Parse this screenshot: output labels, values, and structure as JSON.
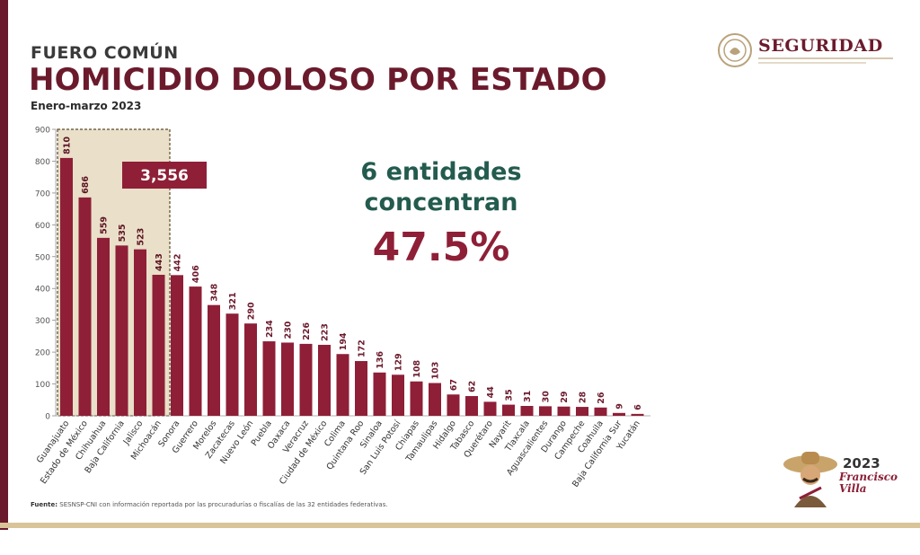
{
  "header": {
    "subtitle": "FUERO COMÚN",
    "title": "HOMICIDIO DOLOSO POR ESTADO",
    "period": "Enero-marzo 2023"
  },
  "brand": {
    "name": "SEGURIDAD"
  },
  "callout": {
    "line1": "6 entidades",
    "line2": "concentran",
    "percent": "47.5%",
    "total_label": "3,556"
  },
  "footer": {
    "label": "Fuente:",
    "text": "SESNSP-CNI con información reportada por las procuradurías o fiscalías de las 32 entidades federativas."
  },
  "logo": {
    "year": "2023",
    "name_line1": "Francisco",
    "name_line2": "Villa"
  },
  "colors": {
    "bar": "#8e1f37",
    "highlight_fill": "#d9c49a",
    "highlight_border": "#5b4a2a",
    "title": "#6b1a2c",
    "callout_green": "#235b4e",
    "callout_red": "#8e1f37"
  },
  "chart_data": {
    "type": "bar",
    "title": "HOMICIDIO DOLOSO POR ESTADO",
    "xlabel": "",
    "ylabel": "",
    "ylim": [
      0,
      900
    ],
    "yticks": [
      0,
      100,
      200,
      300,
      400,
      500,
      600,
      700,
      800,
      900
    ],
    "highlight_count": 6,
    "categories": [
      "Guanajuato",
      "Estado de México",
      "Chihuahua",
      "Baja California",
      "Jalisco",
      "Michoacán",
      "Sonora",
      "Guerrero",
      "Morelos",
      "Zacatecas",
      "Nuevo León",
      "Puebla",
      "Oaxaca",
      "Veracruz",
      "Ciudad de México",
      "Colima",
      "Quintana Roo",
      "Sinaloa",
      "San Luis Potosí",
      "Chiapas",
      "Tamaulipas",
      "Hidalgo",
      "Tabasco",
      "Querétaro",
      "Nayarit",
      "Tlaxcala",
      "Aguascalientes",
      "Durango",
      "Campeche",
      "Coahuila",
      "Baja California Sur",
      "Yucatán"
    ],
    "values": [
      810,
      686,
      559,
      535,
      523,
      443,
      442,
      406,
      348,
      321,
      290,
      234,
      230,
      226,
      223,
      194,
      172,
      136,
      129,
      108,
      103,
      67,
      62,
      44,
      35,
      31,
      30,
      29,
      28,
      26,
      9,
      6
    ]
  }
}
